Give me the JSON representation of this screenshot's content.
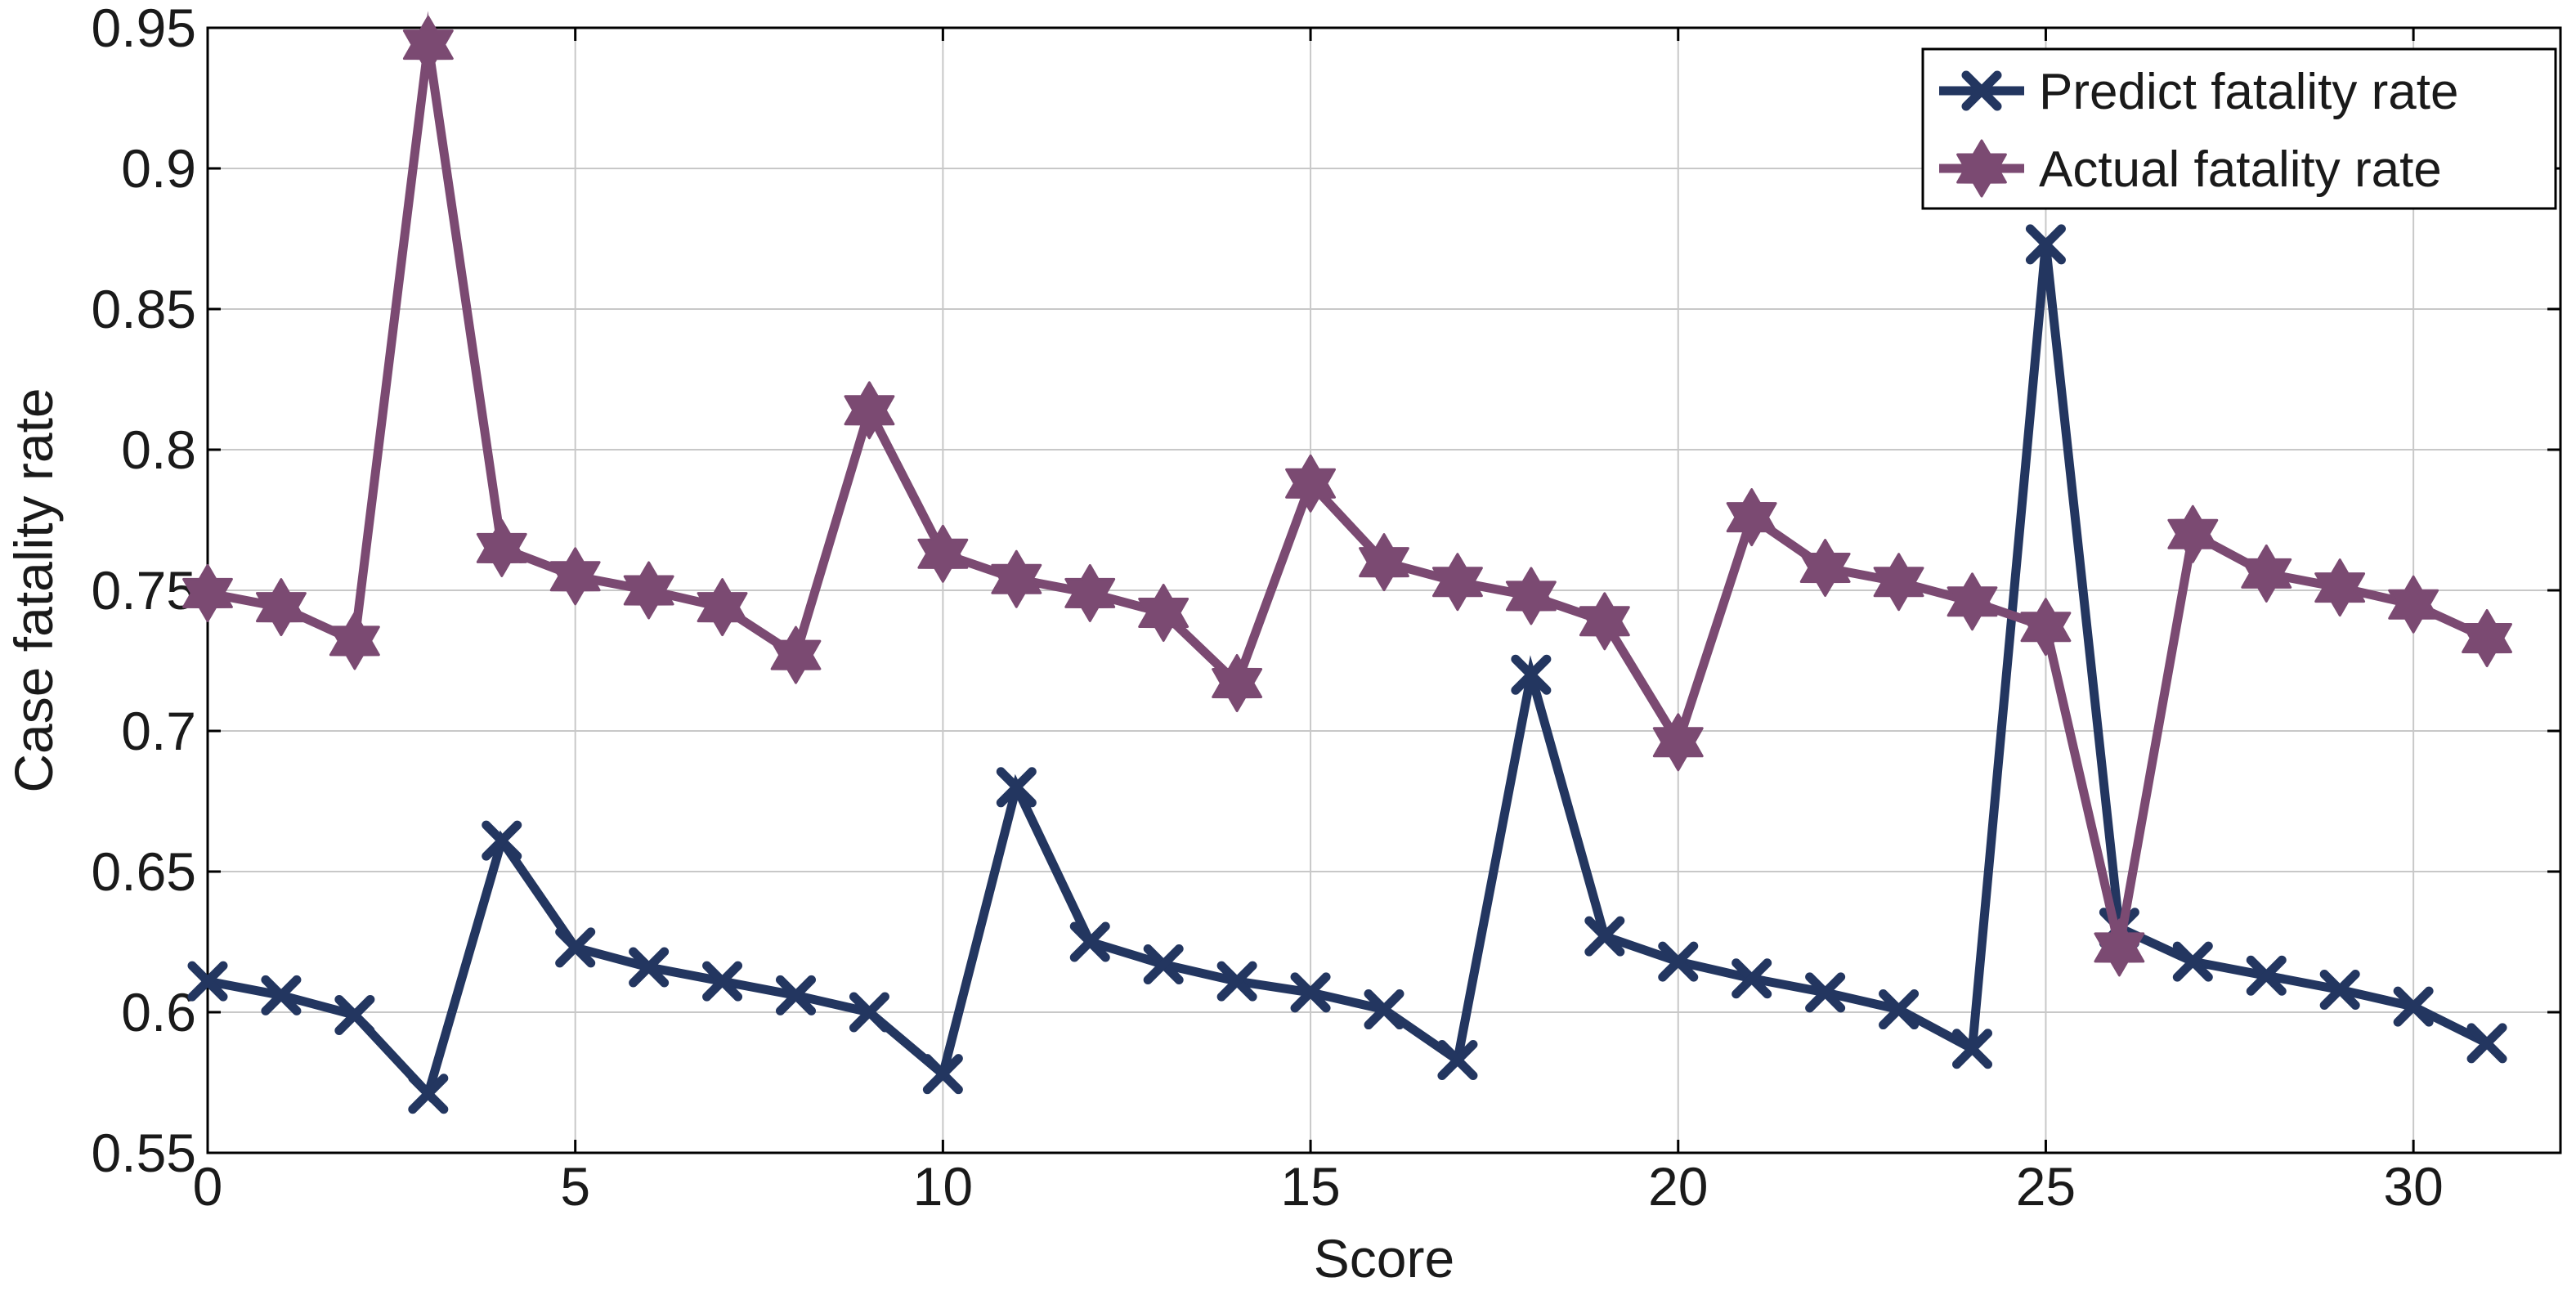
{
  "chart_data": {
    "type": "line",
    "title": "",
    "xlabel": "Score",
    "ylabel": "Case fatality rate",
    "xlim": [
      0,
      32
    ],
    "ylim": [
      0.55,
      0.95
    ],
    "xticks": [
      0,
      5,
      10,
      15,
      20,
      25,
      30
    ],
    "yticks": [
      0.55,
      0.6,
      0.65,
      0.7,
      0.75,
      0.8,
      0.85,
      0.9,
      0.95
    ],
    "xtick_labels": [
      "0",
      "5",
      "10",
      "15",
      "20",
      "25",
      "30"
    ],
    "ytick_labels": [
      "0.55",
      "0.6",
      "0.65",
      "0.7",
      "0.75",
      "0.8",
      "0.85",
      "0.9",
      "0.95"
    ],
    "grid": true,
    "legend_position": "top-right",
    "x": [
      0,
      1,
      2,
      3,
      4,
      5,
      6,
      7,
      8,
      9,
      10,
      11,
      12,
      13,
      14,
      15,
      16,
      17,
      18,
      19,
      20,
      21,
      22,
      23,
      24,
      25,
      26,
      27,
      28,
      29,
      30,
      31
    ],
    "series": [
      {
        "name": "Predict fatality rate",
        "color": "#233660",
        "marker": "x",
        "values": [
          0.611,
          0.606,
          0.599,
          0.571,
          0.661,
          0.623,
          0.616,
          0.611,
          0.606,
          0.6,
          0.578,
          0.68,
          0.625,
          0.617,
          0.611,
          0.607,
          0.601,
          0.583,
          0.72,
          0.627,
          0.618,
          0.612,
          0.607,
          0.601,
          0.587,
          0.873,
          0.63,
          0.618,
          0.613,
          0.608,
          0.602,
          0.589
        ]
      },
      {
        "name": "Actual fatality rate",
        "color": "#7b4a72",
        "marker": "hexagram",
        "values": [
          0.749,
          0.744,
          0.732,
          0.944,
          0.765,
          0.755,
          0.75,
          0.744,
          0.727,
          0.814,
          0.763,
          0.754,
          0.749,
          0.742,
          0.717,
          0.788,
          0.76,
          0.753,
          0.748,
          0.739,
          0.696,
          0.776,
          0.758,
          0.753,
          0.746,
          0.737,
          0.623,
          0.77,
          0.756,
          0.751,
          0.745,
          0.733
        ]
      }
    ]
  }
}
